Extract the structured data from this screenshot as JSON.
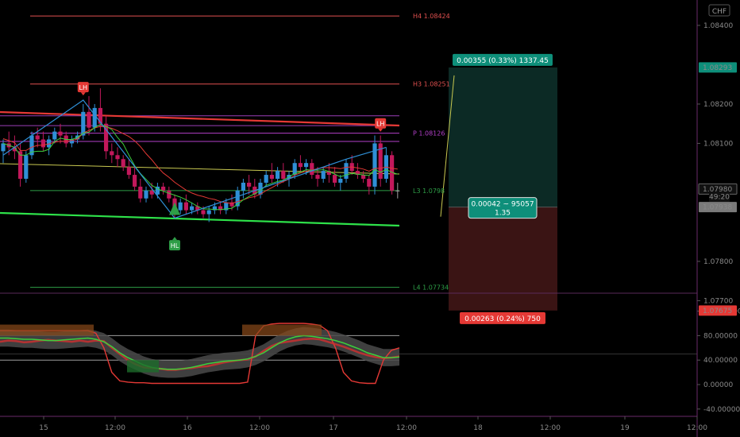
{
  "symbol_badge": "CHF",
  "colors": {
    "up": "#2f8fd6",
    "down": "#c2185b",
    "neutral": "#9e9e9e",
    "pivot_top": "#e0504f",
    "pivot_bottom": "#2e9e47",
    "pivot_p": "#b23fc9",
    "target_zone": "#0c2a25",
    "stop_zone": "#3a1414",
    "axis_sep": "#5a2a5a"
  },
  "chart_data": [
    {
      "type": "candlestick",
      "title": "",
      "x_tick_labels": [
        "15",
        "12:00",
        "16",
        "12:00",
        "17",
        "12:00",
        "18",
        "12:00",
        "19",
        "12:00"
      ],
      "y_tick_labels": [
        "1.08400",
        "1.08200",
        "1.08100",
        "1.07800",
        "1.07700"
      ],
      "ylim": [
        1.0765,
        1.0845
      ],
      "price_labels": [
        {
          "value": 1.08293,
          "label": "1.08293",
          "style": "green"
        },
        {
          "value": 1.0798,
          "label": "1.07980",
          "style": "dark"
        },
        {
          "value": 1.07938,
          "label": "49:20",
          "style": "countdown"
        },
        {
          "value": 1.07938,
          "label": "1.07938",
          "style": "gray"
        },
        {
          "value": 1.07675,
          "label": "1.07675",
          "style": "red"
        }
      ],
      "pivot_levels": [
        {
          "name": "H4",
          "value": "1.08424",
          "label": "H4 1.08424",
          "kind": "top"
        },
        {
          "name": "H3",
          "value": "1.08251",
          "label": "H3 1.08251",
          "kind": "top"
        },
        {
          "name": "P",
          "value": "1.08126",
          "label": "P 1.08126",
          "kind": "p"
        },
        {
          "name": "L3",
          "value": "1.0798",
          "label": "L3 1.0798",
          "kind": "bottom"
        },
        {
          "name": "L4",
          "value": "1.07734",
          "label": "L4 1.07734",
          "kind": "bottom"
        }
      ],
      "extra_lines": [
        1.0817,
        1.08145,
        1.08105
      ],
      "markers": [
        {
          "text": "LH",
          "kind": "top"
        },
        {
          "text": "LH",
          "kind": "top"
        },
        {
          "text": "HL",
          "kind": "bottom"
        }
      ],
      "position": {
        "entry": 1.07938,
        "target": 1.08293,
        "stop": 1.07675,
        "target_label": "0.00355 (0.33%) 1337.45",
        "stop_label": "0.00263 (0.24%) 750",
        "mid_label_1": "0.00042 ~ 95057",
        "mid_label_2": "1.35"
      },
      "candles": [
        [
          1.0808,
          1.0811,
          1.0805,
          1.081
        ],
        [
          1.081,
          1.0813,
          1.0807,
          1.0809
        ],
        [
          1.0809,
          1.0812,
          1.0806,
          1.0808
        ],
        [
          1.0808,
          1.081,
          1.0799,
          1.0801
        ],
        [
          1.0801,
          1.0808,
          1.08,
          1.0807
        ],
        [
          1.0807,
          1.0813,
          1.0806,
          1.0812
        ],
        [
          1.0812,
          1.0814,
          1.0809,
          1.0811
        ],
        [
          1.0811,
          1.0813,
          1.0808,
          1.0809
        ],
        [
          1.0809,
          1.0812,
          1.0807,
          1.0811
        ],
        [
          1.0811,
          1.0814,
          1.081,
          1.0813
        ],
        [
          1.0813,
          1.0815,
          1.081,
          1.0812
        ],
        [
          1.0812,
          1.0813,
          1.0809,
          1.081
        ],
        [
          1.081,
          1.0812,
          1.0809,
          1.0811
        ],
        [
          1.0811,
          1.0813,
          1.081,
          1.0812
        ],
        [
          1.0812,
          1.082,
          1.0811,
          1.0818
        ],
        [
          1.0818,
          1.0822,
          1.0812,
          1.0814
        ],
        [
          1.0814,
          1.082,
          1.0813,
          1.0819
        ],
        [
          1.0819,
          1.0824,
          1.0813,
          1.0815
        ],
        [
          1.0815,
          1.0817,
          1.0806,
          1.0808
        ],
        [
          1.0808,
          1.081,
          1.0805,
          1.0807
        ],
        [
          1.0807,
          1.0809,
          1.0804,
          1.0806
        ],
        [
          1.0806,
          1.0807,
          1.0803,
          1.0804
        ],
        [
          1.0804,
          1.0806,
          1.0801,
          1.0802
        ],
        [
          1.0802,
          1.0804,
          1.0798,
          1.0799
        ],
        [
          1.0799,
          1.0801,
          1.0795,
          1.0796
        ],
        [
          1.0796,
          1.0799,
          1.0795,
          1.0798
        ],
        [
          1.0798,
          1.08,
          1.0796,
          1.0797
        ],
        [
          1.0797,
          1.08,
          1.0796,
          1.0799
        ],
        [
          1.0799,
          1.08,
          1.0797,
          1.0798
        ],
        [
          1.0798,
          1.0799,
          1.0795,
          1.0796
        ],
        [
          1.0796,
          1.0797,
          1.0791,
          1.0793
        ],
        [
          1.0793,
          1.0796,
          1.0792,
          1.0795
        ],
        [
          1.0795,
          1.0797,
          1.0792,
          1.0793
        ],
        [
          1.0793,
          1.0795,
          1.0792,
          1.0794
        ],
        [
          1.0794,
          1.0795,
          1.0792,
          1.0793
        ],
        [
          1.0793,
          1.0794,
          1.0791,
          1.0792
        ],
        [
          1.0792,
          1.0794,
          1.079,
          1.0793
        ],
        [
          1.0793,
          1.0795,
          1.0792,
          1.0794
        ],
        [
          1.0794,
          1.0795,
          1.0792,
          1.0793
        ],
        [
          1.0793,
          1.0796,
          1.0792,
          1.0795
        ],
        [
          1.0795,
          1.0797,
          1.0793,
          1.0794
        ],
        [
          1.0794,
          1.0799,
          1.0793,
          1.0798
        ],
        [
          1.0798,
          1.0801,
          1.0796,
          1.08
        ],
        [
          1.08,
          1.0802,
          1.0797,
          1.0799
        ],
        [
          1.0799,
          1.0801,
          1.0796,
          1.0797
        ],
        [
          1.0797,
          1.0801,
          1.0796,
          1.08
        ],
        [
          1.08,
          1.0803,
          1.0799,
          1.0802
        ],
        [
          1.0802,
          1.0805,
          1.08,
          1.0801
        ],
        [
          1.0801,
          1.0804,
          1.0799,
          1.0803
        ],
        [
          1.0803,
          1.0805,
          1.08,
          1.0801
        ],
        [
          1.0801,
          1.0803,
          1.0799,
          1.0802
        ],
        [
          1.0802,
          1.0806,
          1.0801,
          1.0805
        ],
        [
          1.0805,
          1.0807,
          1.0803,
          1.0804
        ],
        [
          1.0804,
          1.0806,
          1.0802,
          1.0805
        ],
        [
          1.0805,
          1.0806,
          1.0801,
          1.0802
        ],
        [
          1.0802,
          1.0804,
          1.0799,
          1.0801
        ],
        [
          1.0801,
          1.0804,
          1.08,
          1.0803
        ],
        [
          1.0803,
          1.0805,
          1.08,
          1.0802
        ],
        [
          1.0802,
          1.0804,
          1.0799,
          1.08
        ],
        [
          1.08,
          1.0802,
          1.0798,
          1.0801
        ],
        [
          1.0801,
          1.0806,
          1.08,
          1.0805
        ],
        [
          1.0805,
          1.0807,
          1.0802,
          1.0803
        ],
        [
          1.0803,
          1.0805,
          1.0801,
          1.0802
        ],
        [
          1.0802,
          1.0803,
          1.08,
          1.0801
        ],
        [
          1.0801,
          1.0802,
          1.0797,
          1.0799
        ],
        [
          1.0799,
          1.0812,
          1.0797,
          1.081
        ],
        [
          1.081,
          1.0812,
          1.0799,
          1.0801
        ],
        [
          1.0801,
          1.0809,
          1.08,
          1.0807
        ],
        [
          1.0807,
          1.0808,
          1.0797,
          1.0798
        ],
        [
          1.0798,
          1.08,
          1.0796,
          1.0798
        ]
      ]
    },
    {
      "type": "line",
      "title": "",
      "y_tick_labels": [
        "120.00000",
        "80.00000",
        "40.00000",
        "0.00000",
        "-40.00000"
      ],
      "ylim": [
        -48,
        140
      ],
      "bands": [
        80,
        40
      ],
      "series": [
        {
          "values": [
            76,
            76,
            75,
            74,
            74,
            73,
            72,
            72,
            73,
            74,
            75,
            76,
            74,
            70,
            62,
            52,
            44,
            38,
            32,
            28,
            26,
            25,
            25,
            26,
            28,
            31,
            34,
            36,
            38,
            39,
            40,
            42,
            46,
            52,
            60,
            68,
            74,
            78,
            80,
            79,
            77,
            75,
            72,
            68,
            63,
            58,
            52,
            48,
            44,
            44,
            45
          ]
        },
        {
          "values": [
            88,
            88,
            88,
            88,
            88,
            88,
            88,
            88,
            88,
            88,
            88,
            88,
            84,
            60,
            20,
            6,
            4,
            3,
            3,
            2,
            2,
            2,
            2,
            2,
            2,
            2,
            2,
            2,
            2,
            2,
            2,
            4,
            80,
            96,
            99,
            100,
            100,
            100,
            100,
            99,
            97,
            88,
            60,
            20,
            6,
            3,
            2,
            2,
            40,
            56,
            60
          ]
        },
        {
          "values": [
            70,
            72,
            71,
            69,
            70,
            72,
            73,
            72,
            71,
            70,
            72,
            70,
            72,
            71,
            60,
            50,
            40,
            33,
            28,
            27,
            26,
            24,
            24,
            26,
            27,
            29,
            30,
            33,
            36,
            38,
            40,
            41,
            46,
            55,
            63,
            68,
            70,
            72,
            74,
            75,
            74,
            70,
            66,
            62,
            57,
            52,
            48,
            45,
            43,
            44,
            46
          ]
        }
      ]
    }
  ]
}
